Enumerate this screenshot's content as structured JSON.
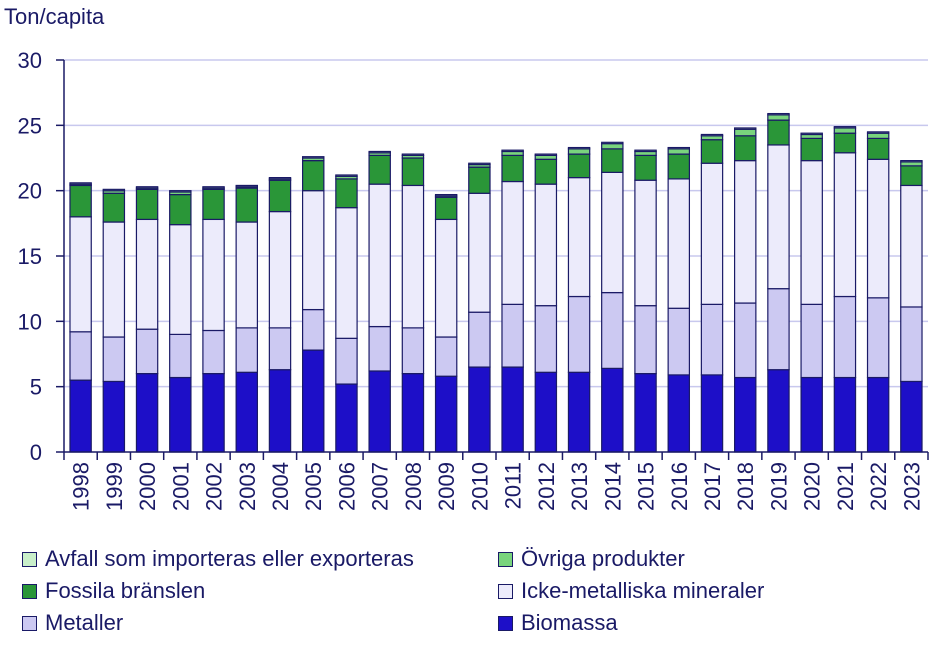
{
  "chart_data": {
    "type": "bar",
    "stacked": true,
    "ylabel": "Ton/capita",
    "ylim": [
      0,
      30
    ],
    "yticks": [
      0,
      5,
      10,
      15,
      20,
      25,
      30
    ],
    "grid": true,
    "legend_position": "bottom",
    "categories": [
      "1998",
      "1999",
      "2000",
      "2001",
      "2002",
      "2003",
      "2004",
      "2005",
      "2006",
      "2007",
      "2008",
      "2009",
      "2010",
      "2011",
      "2012",
      "2013",
      "2014",
      "2015",
      "2016",
      "2017",
      "2018",
      "2019",
      "2020",
      "2021",
      "2022",
      "2023"
    ],
    "series": [
      {
        "name": "Biomassa",
        "color": "#1d0fc8",
        "values": [
          5.5,
          5.4,
          6.0,
          5.7,
          6.0,
          6.1,
          6.3,
          7.8,
          5.2,
          6.2,
          6.0,
          5.8,
          6.5,
          6.5,
          6.1,
          6.1,
          6.4,
          6.0,
          5.9,
          5.9,
          5.7,
          6.3,
          5.7,
          5.7,
          5.7,
          5.4
        ]
      },
      {
        "name": "Metaller",
        "color": "#ccc9f2",
        "values": [
          3.7,
          3.4,
          3.4,
          3.3,
          3.3,
          3.4,
          3.2,
          3.1,
          3.5,
          3.4,
          3.5,
          3.0,
          4.2,
          4.8,
          5.1,
          5.8,
          5.8,
          5.2,
          5.1,
          5.4,
          5.7,
          6.2,
          5.6,
          6.2,
          6.1,
          5.7
        ]
      },
      {
        "name": "Icke-metalliska mineraler",
        "color": "#ecebfb",
        "values": [
          8.8,
          8.8,
          8.4,
          8.4,
          8.5,
          8.1,
          8.9,
          9.1,
          10.0,
          10.9,
          10.9,
          9.0,
          9.1,
          9.4,
          9.3,
          9.1,
          9.2,
          9.6,
          9.9,
          10.8,
          10.9,
          11.0,
          11.0,
          11.0,
          10.6,
          9.3
        ]
      },
      {
        "name": "Fossila bränslen",
        "color": "#2a9638",
        "values": [
          2.4,
          2.2,
          2.3,
          2.3,
          2.3,
          2.6,
          2.4,
          2.3,
          2.2,
          2.2,
          2.1,
          1.7,
          2.0,
          2.0,
          1.9,
          1.8,
          1.8,
          1.9,
          1.9,
          1.8,
          1.9,
          1.9,
          1.7,
          1.5,
          1.6,
          1.5
        ]
      },
      {
        "name": "Övriga produkter",
        "color": "#79d47d",
        "values": [
          0.1,
          0.2,
          0.1,
          0.2,
          0.1,
          0.1,
          0.1,
          0.2,
          0.2,
          0.2,
          0.2,
          0.1,
          0.2,
          0.3,
          0.3,
          0.4,
          0.4,
          0.3,
          0.4,
          0.3,
          0.5,
          0.4,
          0.3,
          0.4,
          0.4,
          0.3
        ]
      },
      {
        "name": "Avfall som importeras eller exporteras",
        "color": "#c9efca",
        "values": [
          0.1,
          0.1,
          0.1,
          0.1,
          0.1,
          0.1,
          0.1,
          0.1,
          0.1,
          0.1,
          0.1,
          0.1,
          0.1,
          0.1,
          0.1,
          0.1,
          0.1,
          0.1,
          0.1,
          0.1,
          0.1,
          0.1,
          0.1,
          0.1,
          0.1,
          0.1
        ]
      }
    ],
    "legend_order": [
      "Avfall som importeras eller exporteras",
      "Övriga produkter",
      "Fossila bränslen",
      "Icke-metalliska mineraler",
      "Metaller",
      "Biomassa"
    ]
  },
  "colors": {
    "axis": "#1a1a66",
    "grid": "#c8c8ee",
    "text": "#1a1a66"
  }
}
